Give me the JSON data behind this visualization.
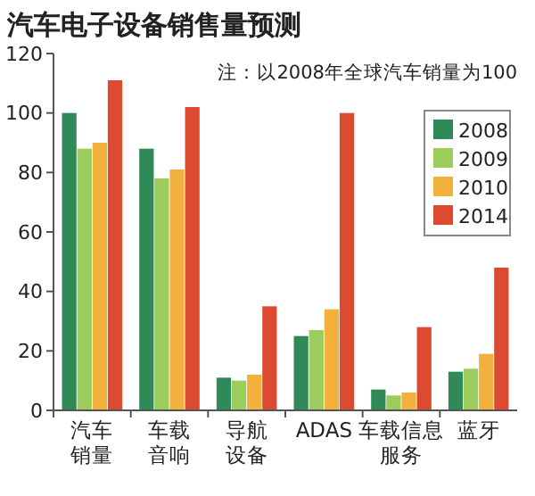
{
  "chart_data": {
    "type": "bar",
    "title": "汽车电子设备销售量预测",
    "annotations": [
      "注：以2008年全球汽车销量为100"
    ],
    "categories": [
      "汽车销量",
      "车载音响",
      "导航设备",
      "ADAS",
      "车载信息服务",
      "蓝牙"
    ],
    "series": [
      {
        "name": "2008",
        "color": "#2f8a57",
        "values": [
          100,
          88,
          11,
          25,
          7,
          13
        ]
      },
      {
        "name": "2009",
        "color": "#9ccc5c",
        "values": [
          88,
          78,
          10,
          27,
          5,
          14
        ]
      },
      {
        "name": "2010",
        "color": "#f2b03c",
        "values": [
          90,
          81,
          12,
          34,
          6,
          19
        ]
      },
      {
        "name": "2014",
        "color": "#dc4a30",
        "values": [
          111,
          102,
          35,
          100,
          28,
          48
        ]
      }
    ],
    "ylim": [
      0,
      120
    ],
    "yticks": [
      0,
      20,
      40,
      60,
      80,
      100,
      120
    ],
    "legend": "top right",
    "grid": false
  }
}
